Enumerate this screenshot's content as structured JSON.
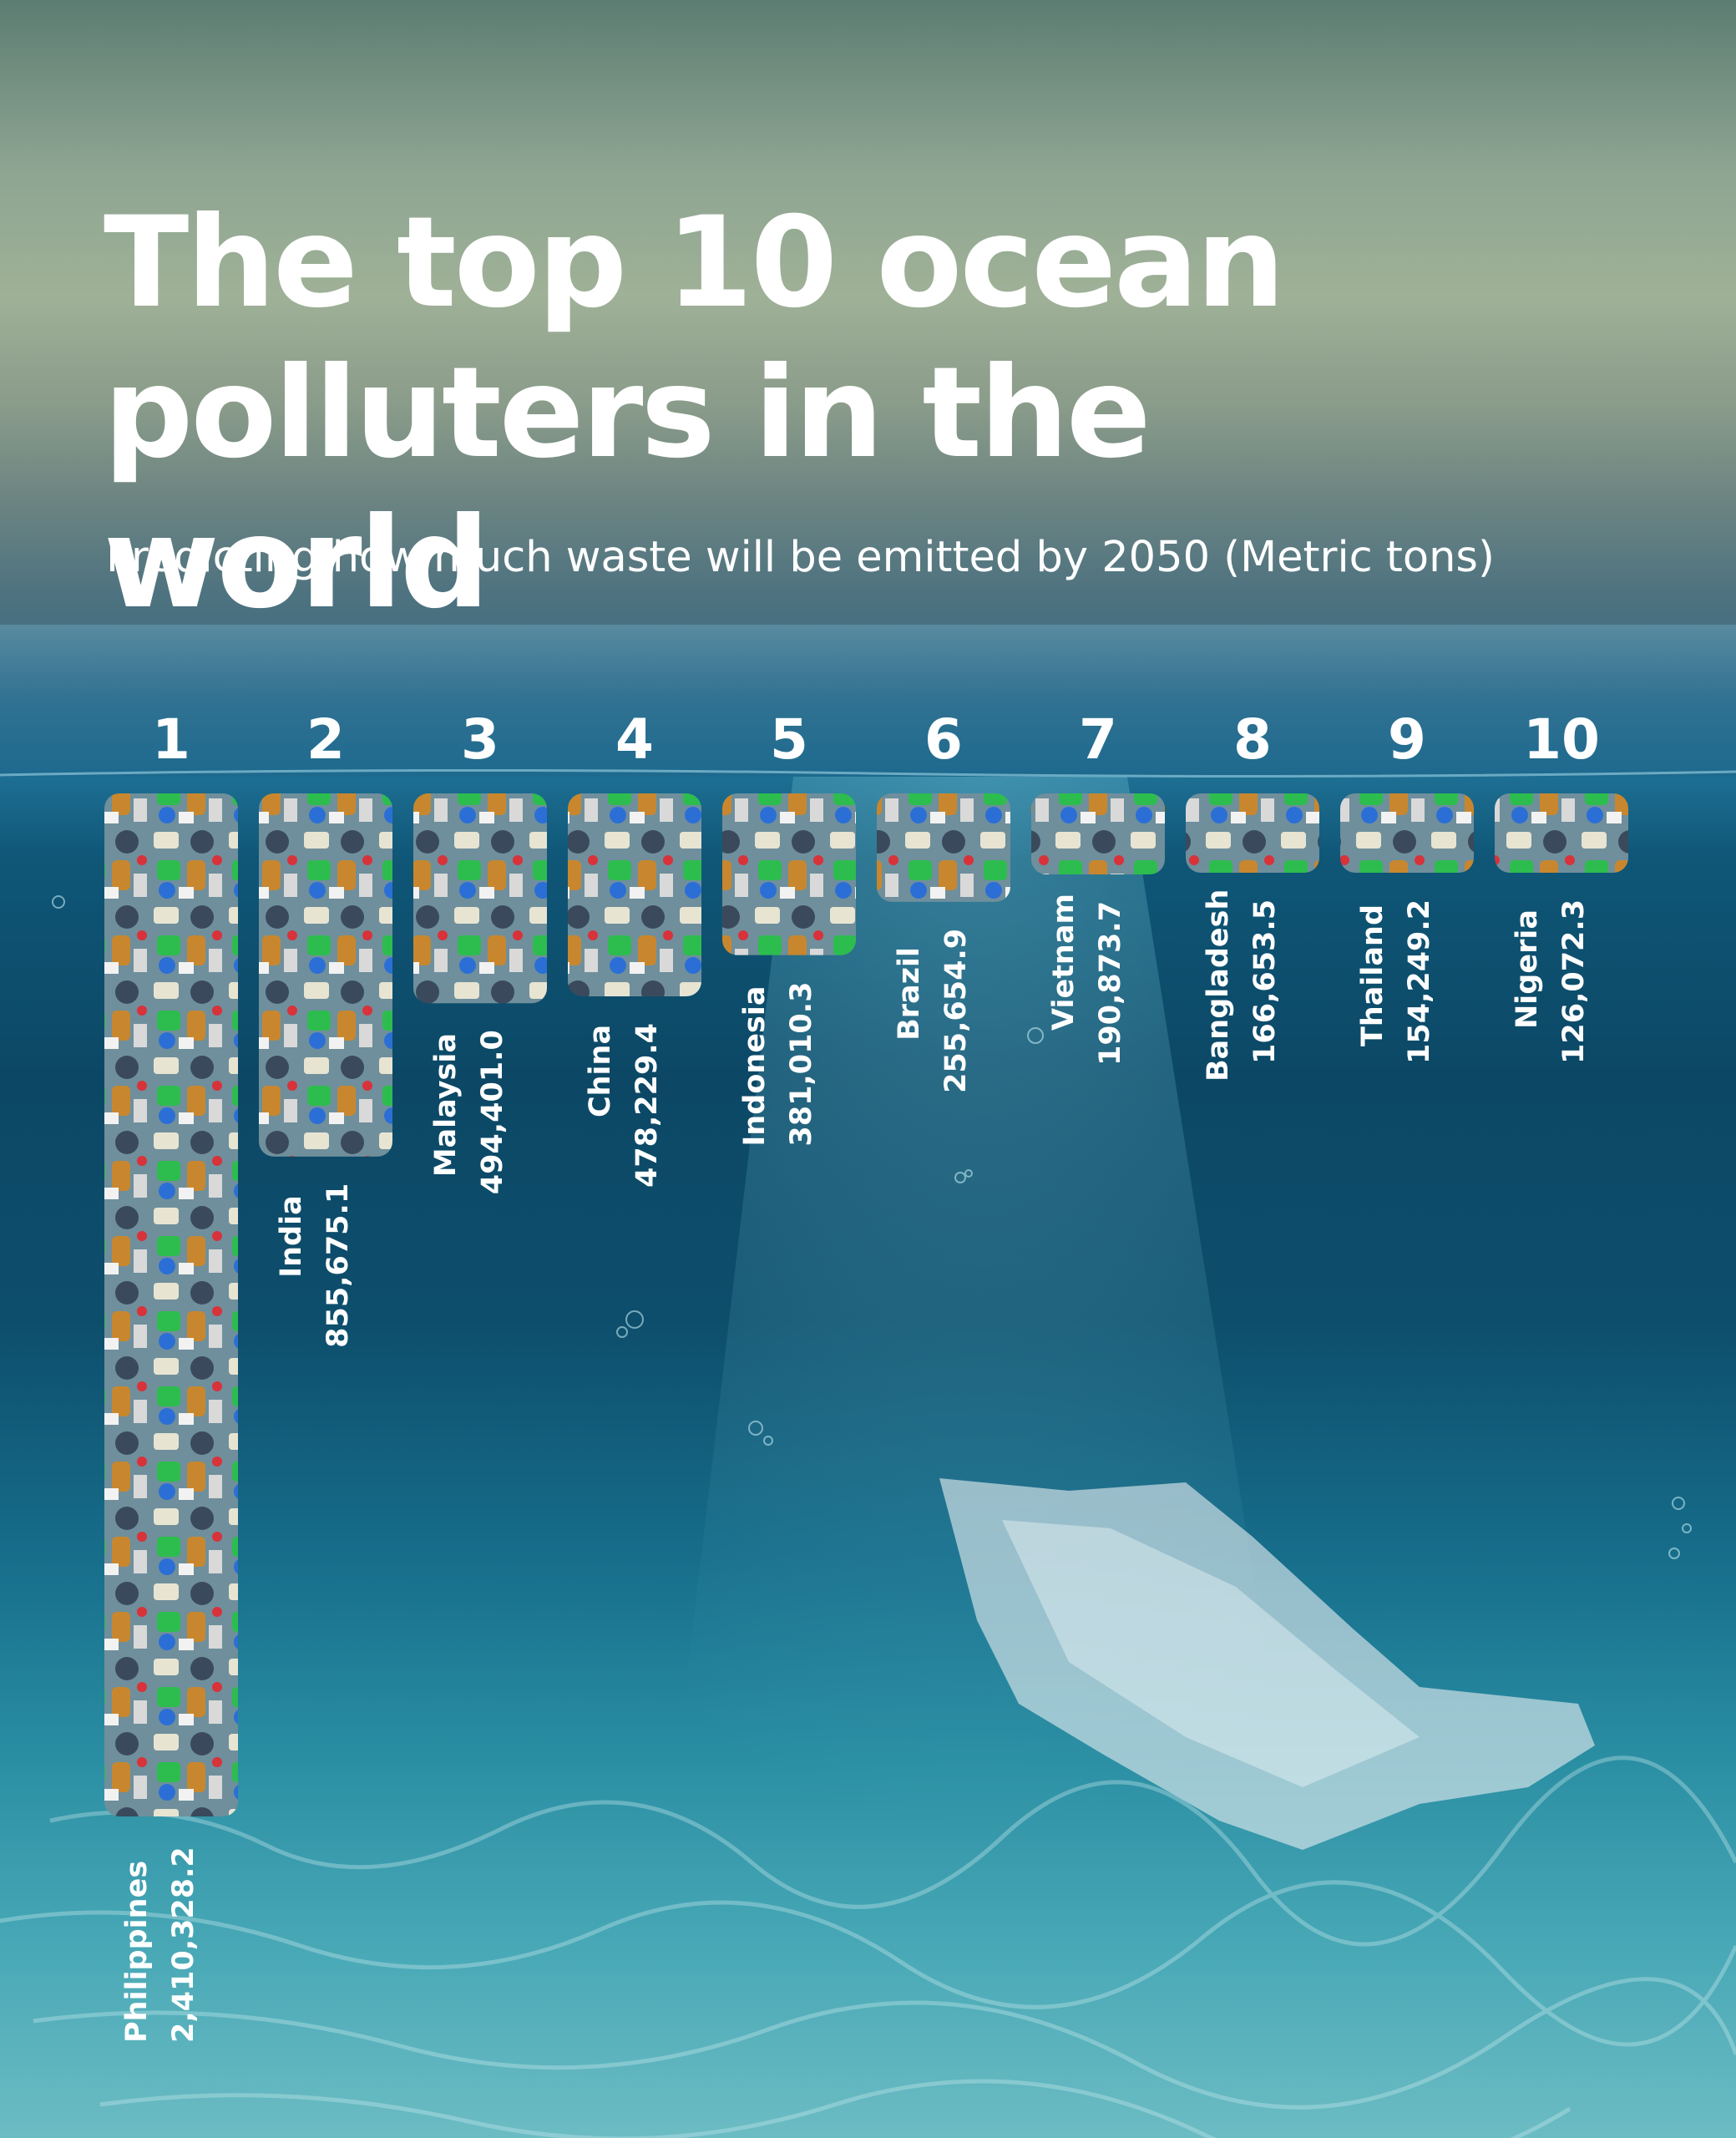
{
  "title_line1": "The top 10 ocean",
  "title_line2": "polluters in the world",
  "subtitle": "Predicting how much waste will be emitted by 2050 (Metric tons)",
  "chart_data": {
    "type": "bar",
    "orientation": "vertical, bars hanging downward from the water surface",
    "categories": [
      "Philippines",
      "India",
      "Malaysia",
      "China",
      "Indonesia",
      "Brazil",
      "Vietnam",
      "Bangladesh",
      "Thailand",
      "Nigeria"
    ],
    "ranks": [
      "1",
      "2",
      "3",
      "4",
      "5",
      "6",
      "7",
      "8",
      "9",
      "10"
    ],
    "values": [
      2410328.2,
      855675.1,
      494401.0,
      478229.4,
      381010.3,
      255654.9,
      190873.7,
      166653.5,
      154249.2,
      126072.3
    ],
    "value_labels": [
      "2,410,328.2",
      "855,675.1",
      "494,401.0",
      "478,229.4",
      "381,010.3",
      "255,654.9",
      "190,873.7",
      "166,653.5",
      "154,249.2",
      "126,072.3"
    ],
    "title": "The top 10 ocean polluters in the world",
    "subtitle": "Predicting how much waste will be emitted by 2050 (Metric tons)",
    "xlabel": "",
    "ylabel": "",
    "grid": false,
    "legend": "none"
  }
}
